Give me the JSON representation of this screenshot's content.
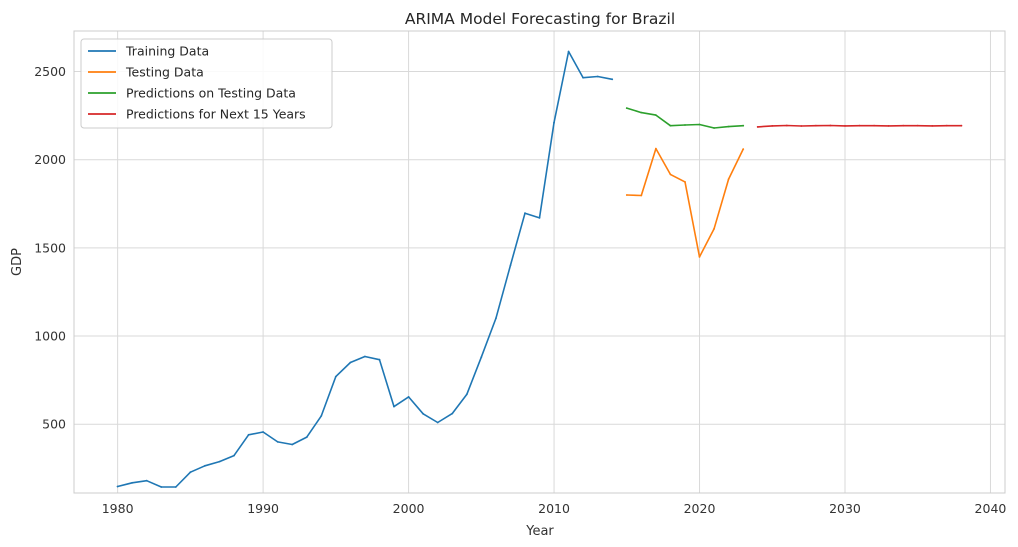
{
  "chart_data": {
    "type": "line",
    "title": "ARIMA Model Forecasting for Brazil",
    "xlabel": "Year",
    "ylabel": "GDP",
    "xlim": [
      1977,
      2041
    ],
    "ylim": [
      110,
      2730
    ],
    "xticks": [
      1980,
      1990,
      2000,
      2010,
      2020,
      2030,
      2040
    ],
    "yticks": [
      500,
      1000,
      1500,
      2000,
      2500
    ],
    "grid": true,
    "legend_position": "top-left",
    "series": [
      {
        "name": "Training Data",
        "color": "#1f77b4",
        "x": [
          1980,
          1981,
          1982,
          1983,
          1984,
          1985,
          1986,
          1987,
          1988,
          1989,
          1990,
          1991,
          1992,
          1993,
          1994,
          1995,
          1996,
          1997,
          1998,
          1999,
          2000,
          2001,
          2002,
          2003,
          2004,
          2005,
          2006,
          2007,
          2008,
          2009,
          2010,
          2011,
          2012,
          2013,
          2014
        ],
        "y": [
          147,
          168,
          180,
          144,
          144,
          228,
          264,
          288,
          322,
          440,
          456,
          400,
          385,
          427,
          547,
          770,
          850,
          884,
          866,
          600,
          655,
          559,
          510,
          560,
          669,
          880,
          1100,
          1400,
          1697,
          1670,
          2210,
          2614,
          2465,
          2472,
          2456
        ]
      },
      {
        "name": "Testing Data",
        "color": "#ff7f0e",
        "x": [
          2015,
          2016,
          2017,
          2018,
          2019,
          2020,
          2021,
          2022,
          2023
        ],
        "y": [
          1800,
          1797,
          2063,
          1917,
          1874,
          1449,
          1609,
          1890,
          2060
        ]
      },
      {
        "name": "Predictions on Testing Data",
        "color": "#2ca02c",
        "x": [
          2015,
          2016,
          2017,
          2018,
          2019,
          2020,
          2021,
          2022,
          2023
        ],
        "y": [
          2293,
          2267,
          2253,
          2193,
          2197,
          2200,
          2180,
          2188,
          2193
        ]
      },
      {
        "name": "Predictions for Next 15 Years",
        "color": "#d62728",
        "x": [
          2024,
          2025,
          2026,
          2027,
          2028,
          2029,
          2030,
          2031,
          2032,
          2033,
          2034,
          2035,
          2036,
          2037,
          2038
        ],
        "y": [
          2186,
          2192,
          2194,
          2191,
          2193,
          2194,
          2192,
          2193,
          2193,
          2192,
          2193,
          2193,
          2192,
          2193,
          2193
        ]
      }
    ]
  }
}
